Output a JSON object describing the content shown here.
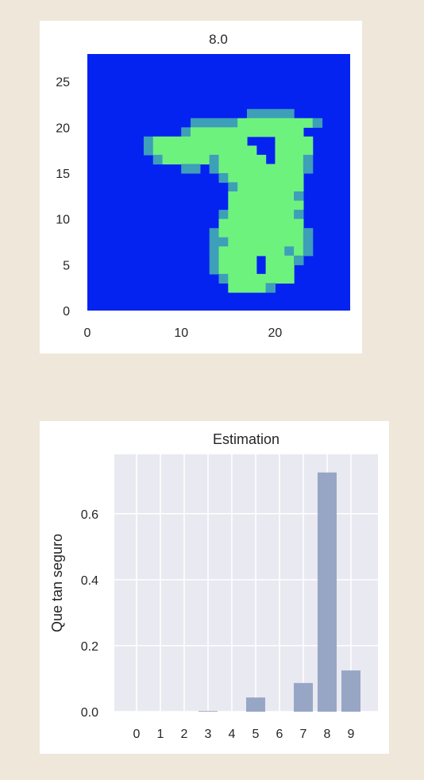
{
  "chart_data": [
    {
      "type": "heatmap",
      "title": "8.0",
      "xlim": [
        0,
        28
      ],
      "ylim": [
        0,
        28
      ],
      "x_ticks": [
        "0",
        "10",
        "20"
      ],
      "y_ticks": [
        "0",
        "5",
        "10",
        "15",
        "20",
        "25"
      ],
      "colors": {
        "low": "#0422f0",
        "high": "#6ef27e",
        "mid": "#3d9fb8"
      },
      "image_rows": [
        "............................",
        "............................",
        "............................",
        "............................",
        "............................",
        "............................",
        ".................+++++......",
        "...........+++++########+...",
        "..........+############.....",
        "......+##########...####....",
        "......+###########..####....",
        ".......+#####+#####.###+....",
        "..........++.+#########+....",
        "..............+########.....",
        "...............+#######.....",
        "...............#######+.....",
        "...............########.....",
        "..............+#######+.....",
        "..............#########.....",
        ".............+#########+....",
        ".............++########+....",
        ".............+#######+#+....",
        ".............+####.###+.....",
        ".............+####.###......",
        "..............+#######......",
        "...............####+........",
        "............................",
        "............................"
      ]
    },
    {
      "type": "bar",
      "title": "Estimation",
      "ylabel": "Que tan seguro",
      "xlabel": "",
      "categories": [
        "0",
        "1",
        "2",
        "3",
        "4",
        "5",
        "6",
        "7",
        "8",
        "9"
      ],
      "values": [
        0.0,
        0.0,
        0.0,
        0.002,
        0.0,
        0.043,
        0.0,
        0.087,
        0.725,
        0.125
      ],
      "ylim": [
        0,
        0.78
      ],
      "y_ticks": [
        "0.0",
        "0.2",
        "0.4",
        "0.6"
      ],
      "bar_color": "#98a6c6",
      "grid": true,
      "background": "#e9e9f1"
    }
  ]
}
